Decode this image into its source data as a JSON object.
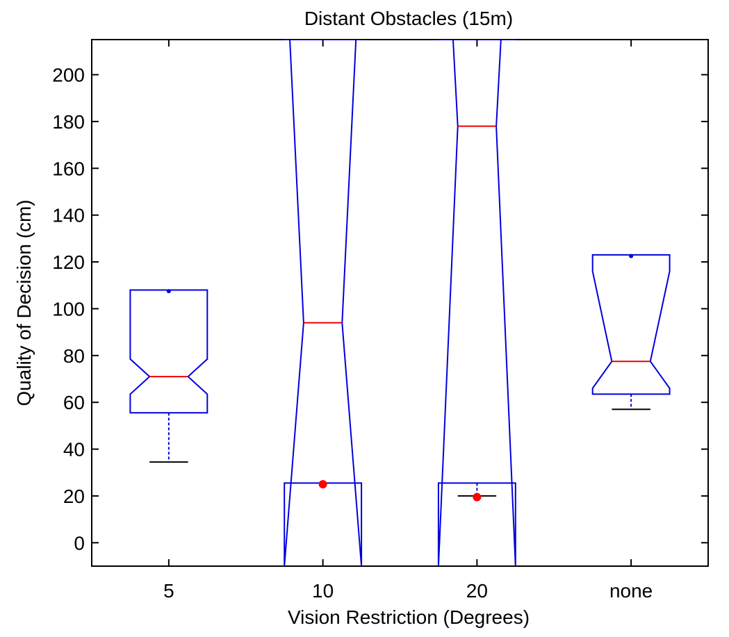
{
  "chart_data": {
    "type": "boxplot",
    "title": "Distant Obstacles (15m)",
    "xlabel": "Vision Restriction (Degrees)",
    "ylabel": "Quality of Decision (cm)",
    "categories": [
      "5",
      "10",
      "20",
      "none"
    ],
    "ylim": [
      -10,
      215
    ],
    "yticks": [
      0,
      20,
      40,
      60,
      80,
      100,
      120,
      140,
      160,
      180,
      200
    ],
    "notched": true,
    "grid": false,
    "boxes": [
      {
        "category": "5",
        "q1": 55.5,
        "median": 71,
        "q3": 108,
        "notch_low": 63.5,
        "notch_high": 78.5,
        "whisker_low": 34.5,
        "whisker_high": 108,
        "mean": 107.5,
        "outliers": []
      },
      {
        "category": "10",
        "q1": 25.5,
        "median": 94,
        "q3": 215,
        "notch_low": -10,
        "notch_high": 263,
        "whisker_low": 25.5,
        "whisker_high": 215,
        "mean": null,
        "outliers": [
          25
        ]
      },
      {
        "category": "20",
        "q1": 25.5,
        "median": 178,
        "q3": 215,
        "notch_low": -10,
        "notch_high": 330,
        "whisker_low": 20,
        "whisker_high": 215,
        "mean": null,
        "outliers": [
          19.5
        ]
      },
      {
        "category": "none",
        "q1": 63.5,
        "median": 77.5,
        "q3": 123,
        "notch_low": 66,
        "notch_high": 116,
        "whisker_low": 57,
        "whisker_high": 123,
        "mean": 122.5,
        "outliers": []
      }
    ],
    "colors": {
      "box": "#0000dd",
      "median": "#ee0000",
      "outlier": "#ff0000",
      "mean": "#0000dd",
      "whisker_cap": "#000000",
      "axis": "#000000"
    }
  }
}
